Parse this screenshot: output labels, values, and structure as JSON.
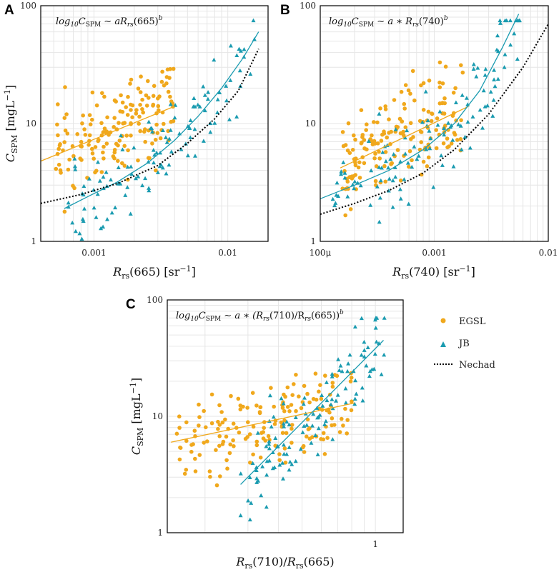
{
  "colors": {
    "egsl": "#f0a81c",
    "jb": "#1a9bb0",
    "nechad": "#000000",
    "grid": "#e6e6e6"
  },
  "legend": {
    "items": [
      {
        "label": "EGSL",
        "marker": "circle",
        "color": "#f0a81c"
      },
      {
        "label": "JB",
        "marker": "triangle",
        "color": "#1a9bb0"
      },
      {
        "label": "Nechad",
        "marker": "dotted-line",
        "color": "#000000"
      }
    ]
  },
  "chart_data": [
    {
      "panel": "A",
      "type": "scatter",
      "scale": "log-log",
      "formula": "log₁₀C_SPM ∼ aR_rs(665)^b",
      "xlabel": "R_rs(665) [sr⁻¹]",
      "ylabel": "C_SPM [mgL⁻¹]",
      "xlim": [
        0.0004,
        0.02
      ],
      "ylim": [
        1,
        100
      ],
      "xticks": [
        {
          "v": 0.001,
          "label": "0.001"
        },
        {
          "v": 0.01,
          "label": "0.01"
        }
      ],
      "yticks": [
        {
          "v": 1,
          "label": "1"
        },
        {
          "v": 10,
          "label": "10"
        },
        {
          "v": 100,
          "label": "100"
        }
      ],
      "series": [
        {
          "name": "EGSL",
          "marker": "circle",
          "seed": 11,
          "n": 170,
          "xmin": 0.0005,
          "xmax": 0.004,
          "ymin": 1.2,
          "ymax": 34,
          "fit": {
            "x": [
              0.0004,
              0.004
            ],
            "y": [
              4.8,
              14
            ]
          }
        },
        {
          "name": "JB",
          "marker": "triangle",
          "seed": 23,
          "n": 120,
          "xmin": 0.0006,
          "xmax": 0.016,
          "ymin": 1.05,
          "ymax": 75,
          "fit": {
            "x": [
              0.0006,
              0.0009,
              0.0015,
              0.0025,
              0.004,
              0.006,
              0.009,
              0.013,
              0.017
            ],
            "y": [
              1.9,
              2.4,
              3.2,
              4.6,
              7.2,
              11.5,
              20,
              36,
              60
            ]
          }
        },
        {
          "name": "Nechad",
          "marker": "dotted-line",
          "fit": {
            "x": [
              0.0004,
              0.0008,
              0.0015,
              0.003,
              0.005,
              0.008,
              0.012,
              0.017
            ],
            "y": [
              2.1,
              2.5,
              3.1,
              4.4,
              6.8,
              11,
              19,
              43
            ]
          }
        }
      ]
    },
    {
      "panel": "B",
      "type": "scatter",
      "scale": "log-log",
      "formula": "log₁₀C_SPM ∼ a ∗ R_rs(740)^b",
      "xlabel": "R_rs(740) [sr⁻¹]",
      "ylabel": "",
      "xlim": [
        0.0001,
        0.01
      ],
      "ylim": [
        1,
        100
      ],
      "xticks": [
        {
          "v": 0.0001,
          "label": "100μ"
        },
        {
          "v": 0.001,
          "label": "0.001"
        },
        {
          "v": 0.01,
          "label": "0.01"
        }
      ],
      "yticks": [
        {
          "v": 1,
          "label": "1"
        },
        {
          "v": 10,
          "label": "10"
        },
        {
          "v": 100,
          "label": "100"
        }
      ],
      "series": [
        {
          "name": "EGSL",
          "marker": "circle",
          "seed": 37,
          "n": 170,
          "xmin": 0.00015,
          "xmax": 0.0018,
          "ymin": 1.2,
          "ymax": 34,
          "fit": {
            "x": [
              0.00015,
              0.002
            ],
            "y": [
              4.2,
              14
            ]
          }
        },
        {
          "name": "JB",
          "marker": "triangle",
          "seed": 41,
          "n": 120,
          "xmin": 0.00012,
          "xmax": 0.0058,
          "ymin": 1.05,
          "ymax": 75,
          "fit": {
            "x": [
              0.0001,
              0.0002,
              0.0004,
              0.0008,
              0.0015,
              0.0025,
              0.004,
              0.0055
            ],
            "y": [
              2.3,
              3.0,
              4.0,
              6.0,
              10,
              19,
              45,
              85
            ]
          }
        },
        {
          "name": "Nechad",
          "marker": "dotted-line",
          "fit": {
            "x": [
              0.0001,
              0.0002,
              0.0004,
              0.0008,
              0.0015,
              0.003,
              0.006,
              0.01
            ],
            "y": [
              1.7,
              2.1,
              2.7,
              3.8,
              6.0,
              12,
              30,
              70
            ]
          }
        }
      ]
    },
    {
      "panel": "C",
      "type": "scatter",
      "scale": "log-log",
      "formula": "log₁₀C_SPM ∼ a ∗ (R_rs(710)/R_rs(665))^b",
      "xlabel": "R_rs(710)/R_rs(665)",
      "ylabel": "C_SPM [mgL⁻¹]",
      "xlim": [
        0.14,
        1.3
      ],
      "ylim": [
        1,
        100
      ],
      "xticks": [
        {
          "v": 1,
          "label": "1"
        }
      ],
      "yticks": [
        {
          "v": 1,
          "label": "1"
        },
        {
          "v": 10,
          "label": "10"
        },
        {
          "v": 100,
          "label": "100"
        }
      ],
      "series": [
        {
          "name": "EGSL",
          "marker": "circle",
          "seed": 53,
          "n": 170,
          "xmin": 0.15,
          "xmax": 0.8,
          "ymin": 1.5,
          "ymax": 34,
          "fit": {
            "x": [
              0.145,
              0.82
            ],
            "y": [
              6.0,
              13
            ]
          }
        },
        {
          "name": "JB",
          "marker": "triangle",
          "seed": 67,
          "n": 120,
          "xmin": 0.28,
          "xmax": 1.1,
          "ymin": 1.05,
          "ymax": 70,
          "fit": {
            "x": [
              0.28,
              1.08
            ],
            "y": [
              2.6,
              45
            ]
          }
        }
      ]
    }
  ]
}
